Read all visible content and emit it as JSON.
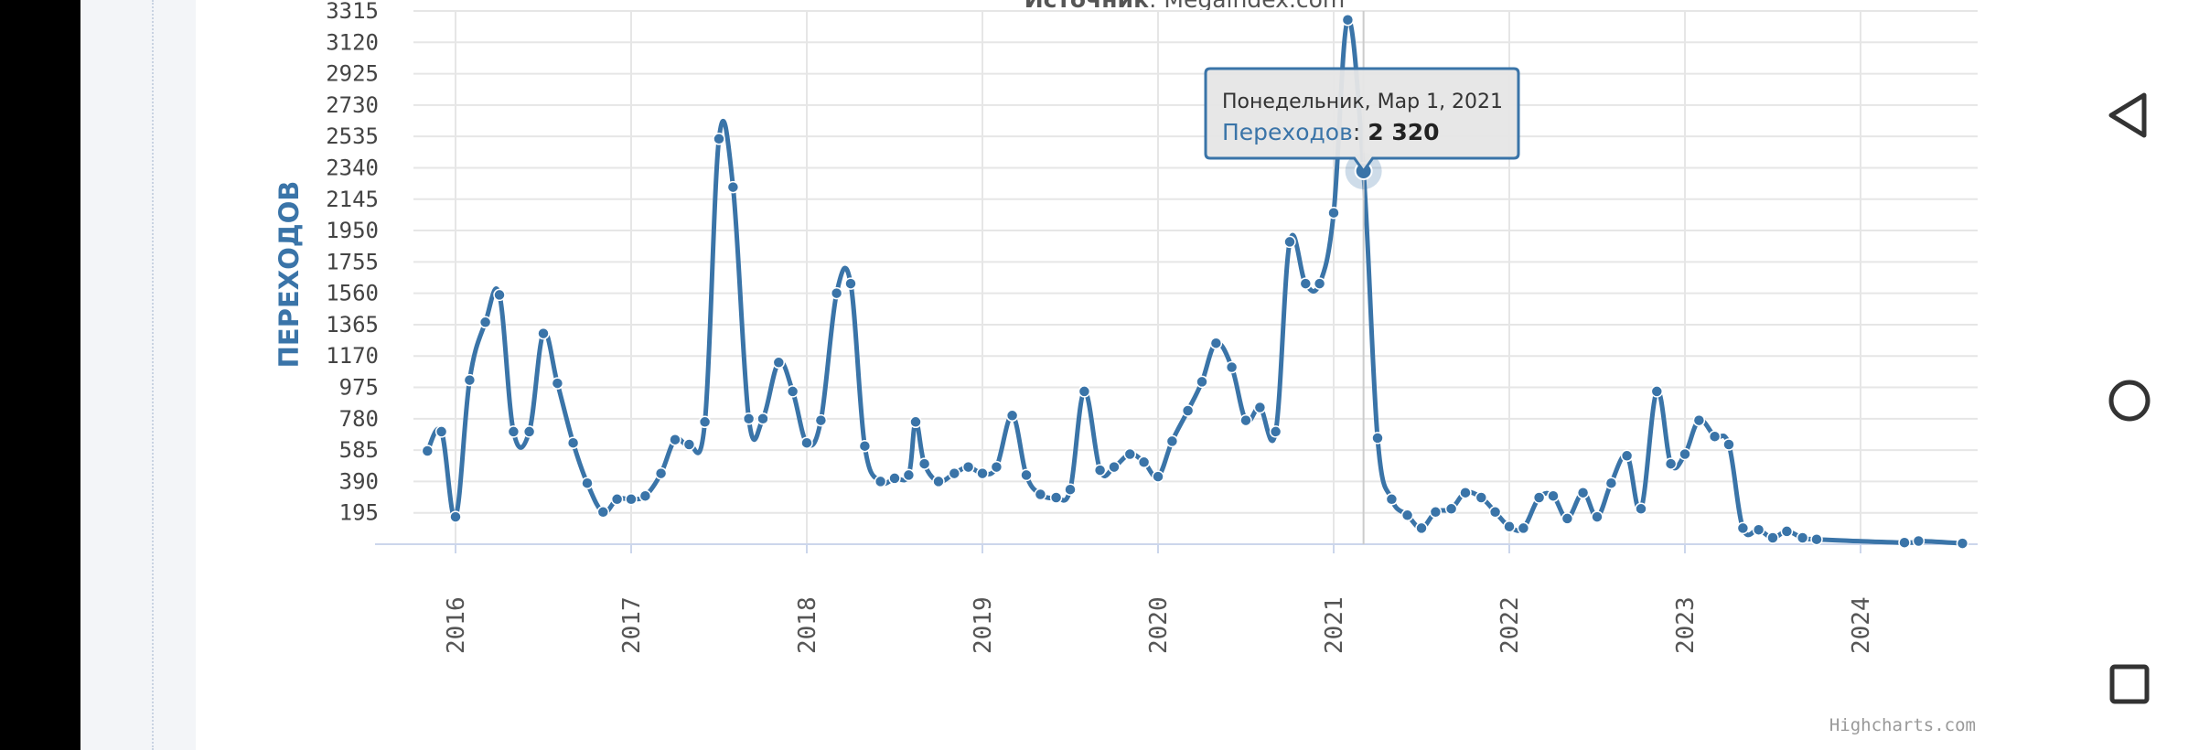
{
  "chart_data": {
    "type": "line",
    "source_label": "Источник",
    "source_value": "Megaindex.com",
    "ylabel": "ПЕРЕХОДОВ",
    "y_ticks": [
      "195",
      "390",
      "585",
      "780",
      "975",
      "1170",
      "1365",
      "1560",
      "1755",
      "1950",
      "2145",
      "2340",
      "2535",
      "2730",
      "2925",
      "3120",
      "3315"
    ],
    "ylim": [
      0,
      3315
    ],
    "x_ticks": [
      "2016",
      "2017",
      "2018",
      "2019",
      "2020",
      "2021",
      "2022",
      "2023",
      "2024"
    ],
    "xlim": [
      2015.75,
      2024.65
    ],
    "grid": true,
    "series": [
      {
        "name": "Переходов",
        "color": "#3a74a8",
        "points": [
          [
            2015.84,
            580
          ],
          [
            2015.92,
            700
          ],
          [
            2016.0,
            170
          ],
          [
            2016.08,
            1020
          ],
          [
            2016.17,
            1380
          ],
          [
            2016.25,
            1550
          ],
          [
            2016.33,
            700
          ],
          [
            2016.42,
            700
          ],
          [
            2016.5,
            1310
          ],
          [
            2016.58,
            1000
          ],
          [
            2016.67,
            630
          ],
          [
            2016.75,
            380
          ],
          [
            2016.84,
            200
          ],
          [
            2016.92,
            280
          ],
          [
            2017.0,
            280
          ],
          [
            2017.08,
            300
          ],
          [
            2017.17,
            440
          ],
          [
            2017.25,
            650
          ],
          [
            2017.33,
            620
          ],
          [
            2017.42,
            760
          ],
          [
            2017.5,
            2520
          ],
          [
            2017.58,
            2220
          ],
          [
            2017.67,
            780
          ],
          [
            2017.75,
            780
          ],
          [
            2017.84,
            1130
          ],
          [
            2017.92,
            950
          ],
          [
            2018.0,
            630
          ],
          [
            2018.08,
            770
          ],
          [
            2018.17,
            1560
          ],
          [
            2018.25,
            1620
          ],
          [
            2018.33,
            610
          ],
          [
            2018.42,
            390
          ],
          [
            2018.5,
            410
          ],
          [
            2018.58,
            430
          ],
          [
            2018.62,
            760
          ],
          [
            2018.67,
            500
          ],
          [
            2018.75,
            390
          ],
          [
            2018.84,
            440
          ],
          [
            2018.92,
            480
          ],
          [
            2019.0,
            440
          ],
          [
            2019.08,
            480
          ],
          [
            2019.17,
            800
          ],
          [
            2019.25,
            430
          ],
          [
            2019.33,
            310
          ],
          [
            2019.42,
            290
          ],
          [
            2019.5,
            340
          ],
          [
            2019.58,
            950
          ],
          [
            2019.67,
            460
          ],
          [
            2019.75,
            480
          ],
          [
            2019.84,
            560
          ],
          [
            2019.92,
            510
          ],
          [
            2020.0,
            420
          ],
          [
            2020.08,
            640
          ],
          [
            2020.17,
            830
          ],
          [
            2020.25,
            1010
          ],
          [
            2020.33,
            1250
          ],
          [
            2020.42,
            1100
          ],
          [
            2020.5,
            770
          ],
          [
            2020.58,
            850
          ],
          [
            2020.67,
            700
          ],
          [
            2020.75,
            1880
          ],
          [
            2020.84,
            1620
          ],
          [
            2020.92,
            1620
          ],
          [
            2021.0,
            2060
          ],
          [
            2021.08,
            3260
          ],
          [
            2021.17,
            2320
          ],
          [
            2021.25,
            660
          ],
          [
            2021.33,
            280
          ],
          [
            2021.42,
            180
          ],
          [
            2021.5,
            100
          ],
          [
            2021.58,
            200
          ],
          [
            2021.67,
            220
          ],
          [
            2021.75,
            320
          ],
          [
            2021.84,
            290
          ],
          [
            2021.92,
            200
          ],
          [
            2022.0,
            110
          ],
          [
            2022.08,
            100
          ],
          [
            2022.17,
            290
          ],
          [
            2022.25,
            300
          ],
          [
            2022.33,
            160
          ],
          [
            2022.42,
            320
          ],
          [
            2022.5,
            170
          ],
          [
            2022.58,
            380
          ],
          [
            2022.67,
            550
          ],
          [
            2022.75,
            220
          ],
          [
            2022.84,
            950
          ],
          [
            2022.92,
            500
          ],
          [
            2023.0,
            560
          ],
          [
            2023.08,
            770
          ],
          [
            2023.17,
            670
          ],
          [
            2023.25,
            620
          ],
          [
            2023.33,
            100
          ],
          [
            2023.42,
            90
          ],
          [
            2023.5,
            40
          ],
          [
            2023.58,
            80
          ],
          [
            2023.67,
            40
          ],
          [
            2023.75,
            30
          ],
          [
            2024.25,
            10
          ],
          [
            2024.33,
            20
          ],
          [
            2024.58,
            5
          ]
        ]
      }
    ],
    "tooltip": {
      "x": 2021.17,
      "y": 2320,
      "date_label": "Понедельник, Мар 1, 2021",
      "series_label": "Переходов",
      "value_text": "2 320"
    },
    "credits": "Highcharts.com"
  }
}
